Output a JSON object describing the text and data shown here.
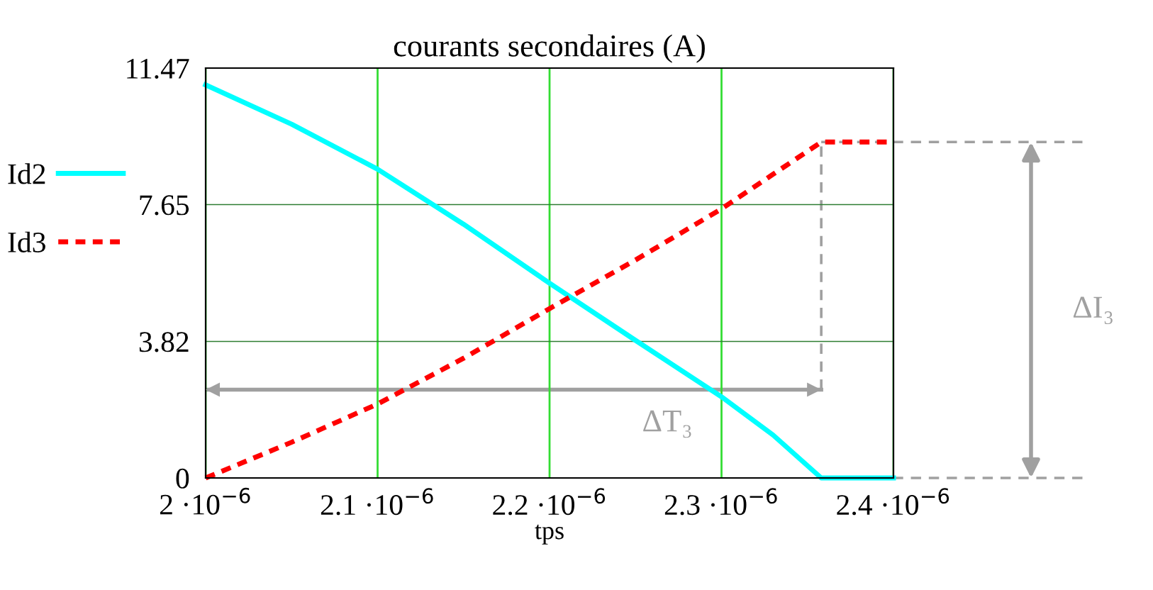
{
  "chart_data": {
    "type": "line",
    "title": "courants secondaires (A)",
    "xlabel": "tps",
    "series": [
      {
        "name": "Id2",
        "color": "#00ffff",
        "line_style": "solid",
        "x": [
          2e-06,
          2.05e-06,
          2.1e-06,
          2.15e-06,
          2.2e-06,
          2.25e-06,
          2.3e-06,
          2.33e-06,
          2.358e-06,
          2.4e-06
        ],
        "values": [
          11.0,
          9.9,
          8.64,
          7.1,
          5.45,
          3.85,
          2.27,
          1.2,
          0,
          0
        ]
      },
      {
        "name": "Id3",
        "color": "#ff0000",
        "line_style": "dotted",
        "x": [
          2e-06,
          2.05e-06,
          2.1e-06,
          2.15e-06,
          2.2e-06,
          2.25e-06,
          2.3e-06,
          2.33e-06,
          2.358e-06,
          2.4e-06
        ],
        "values": [
          0,
          1.0,
          2.07,
          3.35,
          4.74,
          6.1,
          7.53,
          8.5,
          9.4,
          9.4
        ]
      }
    ],
    "xlim": [
      2e-06,
      2.4e-06
    ],
    "xticks": [
      {
        "value": 2e-06,
        "label": "2 ·10$^{−6}$"
      },
      {
        "value": 2.1e-06,
        "label": "2.1 ·10$^{−6}$"
      },
      {
        "value": 2.2e-06,
        "label": "2.2 ·10$^{−6}$"
      },
      {
        "value": 2.3e-06,
        "label": "2.3 ·10$^{−6}$"
      },
      {
        "value": 2.4e-06,
        "label": "2.4 ·10$^{−6}$"
      }
    ],
    "ylim": [
      0,
      11.47
    ],
    "yticks": [
      0,
      3.82,
      7.65,
      11.47
    ],
    "grid": true,
    "legend": "left",
    "marker": "none",
    "ref_lines": [
      {
        "axis": "y",
        "value": 9.4,
        "color": "#a0a0a0",
        "line_style": "dashed"
      },
      {
        "axis": "y",
        "value": 0,
        "color": "#a0a0a0",
        "line_style": "dashed"
      },
      {
        "axis": "x",
        "value": 2.358e-06,
        "color": "#a0a0a0",
        "line_style": "dashed"
      },
      {
        "axis": "y",
        "value": 2.47,
        "color": "#a0a0a0",
        "line_style": "solid",
        "label": "ΔT₃"
      }
    ],
    "annotations": [
      "ΔI₃"
    ]
  }
}
